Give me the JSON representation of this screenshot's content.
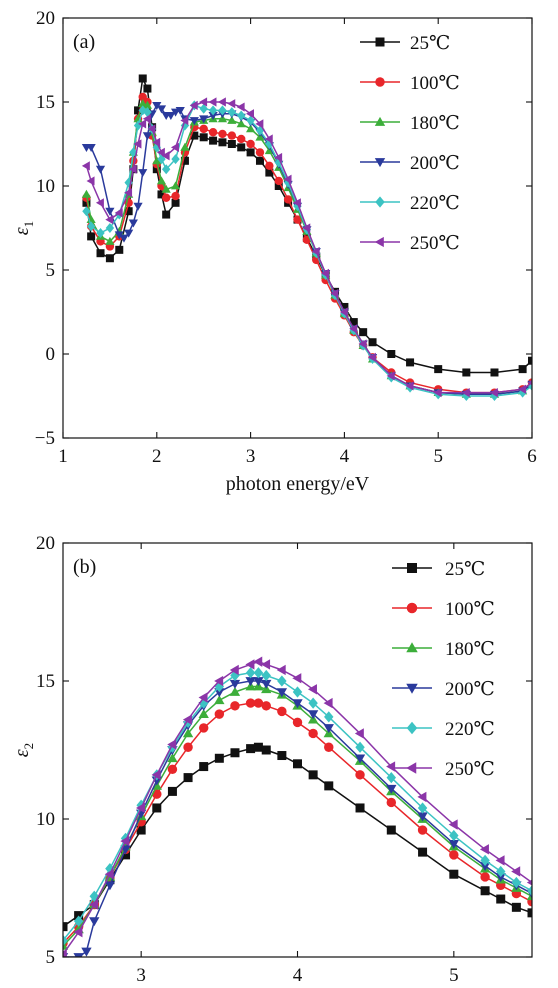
{
  "chart_data": [
    {
      "type": "line",
      "panel_label": "(a)",
      "xlabel": "photon energy/eV",
      "ylabel": "ε",
      "ylabel_sub": "1",
      "xlim": [
        1,
        6
      ],
      "ylim": [
        -5,
        20
      ],
      "xticks": [
        1,
        2,
        3,
        4,
        5,
        6
      ],
      "yticks": [
        -5,
        0,
        5,
        10,
        15,
        20
      ],
      "legend_position": "top-right",
      "series": [
        {
          "name": "25℃",
          "color": "#111111",
          "marker": "square",
          "x": [
            1.25,
            1.3,
            1.4,
            1.5,
            1.6,
            1.7,
            1.75,
            1.8,
            1.85,
            1.9,
            1.95,
            2.0,
            2.05,
            2.1,
            2.2,
            2.3,
            2.4,
            2.5,
            2.6,
            2.7,
            2.8,
            2.9,
            3.0,
            3.1,
            3.2,
            3.3,
            3.4,
            3.5,
            3.6,
            3.7,
            3.8,
            3.9,
            4.0,
            4.1,
            4.2,
            4.3,
            4.5,
            4.7,
            5.0,
            5.3,
            5.6,
            5.9,
            6.0
          ],
          "y": [
            9.0,
            7.0,
            6.0,
            5.7,
            6.2,
            8.5,
            11.0,
            14.5,
            16.4,
            15.8,
            13.5,
            11.0,
            9.5,
            8.3,
            9.0,
            11.5,
            13.0,
            12.9,
            12.7,
            12.6,
            12.5,
            12.3,
            12.0,
            11.5,
            10.8,
            10.0,
            9.0,
            8.0,
            6.9,
            5.8,
            4.7,
            3.7,
            2.8,
            1.9,
            1.3,
            0.7,
            0.0,
            -0.5,
            -0.9,
            -1.1,
            -1.1,
            -0.9,
            -0.4
          ]
        },
        {
          "name": "100℃",
          "color": "#e8262a",
          "marker": "circle",
          "x": [
            1.25,
            1.3,
            1.4,
            1.5,
            1.6,
            1.7,
            1.75,
            1.8,
            1.85,
            1.9,
            1.95,
            2.0,
            2.05,
            2.1,
            2.2,
            2.3,
            2.4,
            2.5,
            2.6,
            2.7,
            2.8,
            2.9,
            3.0,
            3.1,
            3.2,
            3.3,
            3.4,
            3.5,
            3.6,
            3.7,
            3.8,
            3.9,
            4.0,
            4.1,
            4.2,
            4.3,
            4.5,
            4.7,
            5.0,
            5.3,
            5.6,
            5.9,
            6.0
          ],
          "y": [
            9.3,
            7.6,
            6.7,
            6.4,
            7.0,
            9.0,
            11.5,
            14.0,
            15.3,
            15.0,
            13.0,
            11.3,
            10.0,
            9.3,
            9.4,
            12.0,
            13.5,
            13.4,
            13.2,
            13.1,
            13.0,
            12.8,
            12.5,
            12.0,
            11.2,
            10.3,
            9.2,
            8.0,
            6.8,
            5.6,
            4.4,
            3.3,
            2.3,
            1.3,
            0.5,
            -0.2,
            -1.1,
            -1.7,
            -2.1,
            -2.3,
            -2.3,
            -2.1,
            -1.7
          ]
        },
        {
          "name": "180℃",
          "color": "#3cae3a",
          "marker": "triangle-up",
          "x": [
            1.25,
            1.3,
            1.4,
            1.5,
            1.6,
            1.7,
            1.75,
            1.8,
            1.85,
            1.9,
            1.95,
            2.0,
            2.05,
            2.1,
            2.2,
            2.3,
            2.4,
            2.5,
            2.6,
            2.7,
            2.8,
            2.9,
            3.0,
            3.1,
            3.2,
            3.3,
            3.4,
            3.5,
            3.6,
            3.7,
            3.8,
            3.9,
            4.0,
            4.1,
            4.2,
            4.3,
            4.5,
            4.7,
            5.0,
            5.3,
            5.6,
            5.9,
            6.0
          ],
          "y": [
            9.5,
            8.0,
            7.0,
            6.7,
            7.3,
            9.5,
            12.0,
            14.0,
            14.9,
            14.8,
            13.2,
            11.5,
            10.3,
            9.8,
            10.0,
            12.3,
            13.8,
            13.9,
            14.0,
            14.0,
            13.9,
            13.7,
            13.4,
            12.9,
            12.1,
            11.1,
            9.9,
            8.6,
            7.3,
            6.0,
            4.7,
            3.5,
            2.4,
            1.4,
            0.5,
            -0.3,
            -1.3,
            -1.9,
            -2.3,
            -2.4,
            -2.4,
            -2.2,
            -1.8
          ]
        },
        {
          "name": "200℃",
          "color": "#2a3a9c",
          "marker": "triangle-down",
          "x": [
            1.25,
            1.3,
            1.4,
            1.5,
            1.6,
            1.65,
            1.7,
            1.75,
            1.8,
            1.85,
            1.9,
            1.95,
            2.0,
            2.05,
            2.1,
            2.15,
            2.2,
            2.25,
            2.3,
            2.4,
            2.5,
            2.6,
            2.7,
            2.8,
            2.9,
            3.0,
            3.1,
            3.2,
            3.3,
            3.4,
            3.5,
            3.6,
            3.7,
            3.8,
            3.9,
            4.0,
            4.1,
            4.2,
            4.3,
            4.5,
            4.7,
            5.0,
            5.3,
            5.6,
            5.9,
            6.0
          ],
          "y": [
            12.3,
            12.3,
            11.0,
            8.5,
            7.1,
            6.9,
            7.2,
            7.8,
            8.8,
            10.8,
            13.0,
            14.3,
            14.8,
            14.6,
            14.2,
            14.2,
            14.4,
            14.5,
            14.0,
            13.9,
            14.0,
            14.2,
            14.3,
            14.3,
            14.1,
            13.8,
            13.2,
            12.4,
            11.3,
            10.1,
            8.8,
            7.4,
            6.1,
            4.8,
            3.6,
            2.5,
            1.5,
            0.6,
            -0.2,
            -1.3,
            -1.9,
            -2.3,
            -2.4,
            -2.4,
            -2.2,
            -1.8
          ]
        },
        {
          "name": "220℃",
          "color": "#3cc3c3",
          "marker": "diamond",
          "x": [
            1.25,
            1.3,
            1.4,
            1.5,
            1.6,
            1.7,
            1.75,
            1.8,
            1.85,
            1.9,
            1.95,
            2.0,
            2.05,
            2.1,
            2.2,
            2.3,
            2.4,
            2.5,
            2.6,
            2.7,
            2.8,
            2.9,
            3.0,
            3.1,
            3.2,
            3.3,
            3.4,
            3.5,
            3.6,
            3.7,
            3.8,
            3.9,
            4.0,
            4.1,
            4.2,
            4.3,
            4.5,
            4.7,
            5.0,
            5.3,
            5.6,
            5.9,
            6.0
          ],
          "y": [
            8.5,
            7.6,
            7.2,
            7.5,
            8.3,
            10.2,
            12.0,
            13.6,
            14.5,
            14.4,
            13.4,
            12.3,
            11.6,
            11.0,
            11.6,
            13.6,
            14.8,
            14.6,
            14.5,
            14.5,
            14.4,
            14.2,
            13.9,
            13.3,
            12.5,
            11.4,
            10.2,
            8.8,
            7.4,
            6.0,
            4.7,
            3.5,
            2.4,
            1.4,
            0.5,
            -0.3,
            -1.4,
            -2.0,
            -2.4,
            -2.5,
            -2.5,
            -2.3,
            -1.9
          ]
        },
        {
          "name": "250℃",
          "color": "#8b35a8",
          "marker": "triangle-left",
          "x": [
            1.25,
            1.3,
            1.4,
            1.5,
            1.6,
            1.7,
            1.75,
            1.8,
            1.85,
            1.9,
            1.95,
            2.0,
            2.05,
            2.1,
            2.2,
            2.3,
            2.4,
            2.5,
            2.6,
            2.7,
            2.8,
            2.9,
            3.0,
            3.1,
            3.2,
            3.3,
            3.4,
            3.5,
            3.6,
            3.7,
            3.8,
            3.9,
            4.0,
            4.1,
            4.2,
            4.3,
            4.5,
            4.7,
            5.0,
            5.3,
            5.6,
            5.9,
            6.0
          ],
          "y": [
            11.2,
            10.3,
            9.0,
            8.0,
            8.4,
            9.6,
            11.0,
            12.5,
            13.7,
            14.0,
            13.4,
            12.6,
            12.0,
            11.8,
            12.3,
            13.9,
            14.8,
            15.0,
            15.0,
            15.0,
            14.9,
            14.7,
            14.3,
            13.7,
            12.8,
            11.7,
            10.4,
            9.0,
            7.5,
            6.1,
            4.8,
            3.6,
            2.5,
            1.5,
            0.6,
            -0.2,
            -1.3,
            -1.9,
            -2.3,
            -2.3,
            -2.3,
            -2.1,
            -1.7
          ]
        }
      ]
    },
    {
      "type": "line",
      "panel_label": "(b)",
      "xlabel": "",
      "ylabel": "ε",
      "ylabel_sub": "2",
      "xlim": [
        2.5,
        5.5
      ],
      "ylim": [
        5,
        20
      ],
      "xticks": [
        3,
        4,
        5
      ],
      "yticks": [
        5,
        10,
        15,
        20
      ],
      "legend_position": "top-right",
      "series": [
        {
          "name": "25℃",
          "color": "#111111",
          "marker": "square",
          "x": [
            2.5,
            2.6,
            2.7,
            2.8,
            2.9,
            3.0,
            3.1,
            3.2,
            3.3,
            3.4,
            3.5,
            3.6,
            3.7,
            3.75,
            3.8,
            3.9,
            4.0,
            4.1,
            4.2,
            4.4,
            4.6,
            4.8,
            5.0,
            5.2,
            5.3,
            5.4,
            5.5
          ],
          "y": [
            6.1,
            6.5,
            6.9,
            7.8,
            8.7,
            9.6,
            10.4,
            11.0,
            11.5,
            11.9,
            12.2,
            12.4,
            12.55,
            12.6,
            12.5,
            12.3,
            12.0,
            11.6,
            11.2,
            10.4,
            9.6,
            8.8,
            8.0,
            7.4,
            7.1,
            6.8,
            6.6
          ]
        },
        {
          "name": "100℃",
          "color": "#e8262a",
          "marker": "circle",
          "x": [
            2.5,
            2.6,
            2.7,
            2.8,
            2.9,
            3.0,
            3.1,
            3.2,
            3.3,
            3.4,
            3.5,
            3.6,
            3.7,
            3.75,
            3.8,
            3.9,
            4.0,
            4.1,
            4.2,
            4.4,
            4.6,
            4.8,
            5.0,
            5.2,
            5.3,
            5.4,
            5.5
          ],
          "y": [
            5.5,
            6.1,
            6.9,
            7.9,
            8.9,
            9.9,
            10.9,
            11.8,
            12.6,
            13.3,
            13.8,
            14.1,
            14.2,
            14.2,
            14.1,
            13.9,
            13.5,
            13.1,
            12.6,
            11.6,
            10.6,
            9.6,
            8.7,
            7.9,
            7.6,
            7.3,
            7.0
          ]
        },
        {
          "name": "180℃",
          "color": "#3cae3a",
          "marker": "triangle-up",
          "x": [
            2.5,
            2.6,
            2.7,
            2.8,
            2.9,
            3.0,
            3.1,
            3.2,
            3.3,
            3.4,
            3.5,
            3.6,
            3.7,
            3.75,
            3.8,
            3.9,
            4.0,
            4.1,
            4.2,
            4.4,
            4.6,
            4.8,
            5.0,
            5.2,
            5.3,
            5.4,
            5.5
          ],
          "y": [
            5.4,
            6.0,
            6.9,
            7.9,
            9.0,
            10.1,
            11.2,
            12.2,
            13.1,
            13.8,
            14.3,
            14.6,
            14.8,
            14.8,
            14.7,
            14.5,
            14.1,
            13.6,
            13.1,
            12.1,
            11.0,
            10.0,
            9.0,
            8.2,
            7.8,
            7.5,
            7.2
          ]
        },
        {
          "name": "200℃",
          "color": "#2a3a9c",
          "marker": "triangle-down",
          "x": [
            2.5,
            2.6,
            2.65,
            2.7,
            2.8,
            2.9,
            3.0,
            3.1,
            3.2,
            3.3,
            3.4,
            3.5,
            3.6,
            3.7,
            3.75,
            3.8,
            3.9,
            4.0,
            4.1,
            4.2,
            4.4,
            4.6,
            4.8,
            5.0,
            5.2,
            5.3,
            5.4,
            5.5
          ],
          "y": [
            5.0,
            5.0,
            5.2,
            6.3,
            7.6,
            8.9,
            10.2,
            11.4,
            12.5,
            13.4,
            14.1,
            14.6,
            14.9,
            15.0,
            15.0,
            14.9,
            14.6,
            14.2,
            13.8,
            13.3,
            12.2,
            11.1,
            10.1,
            9.1,
            8.3,
            7.9,
            7.6,
            7.3
          ]
        },
        {
          "name": "220℃",
          "color": "#3cc3c3",
          "marker": "diamond",
          "x": [
            2.5,
            2.6,
            2.7,
            2.8,
            2.9,
            3.0,
            3.1,
            3.2,
            3.3,
            3.4,
            3.5,
            3.6,
            3.7,
            3.75,
            3.8,
            3.9,
            4.0,
            4.1,
            4.2,
            4.4,
            4.6,
            4.8,
            5.0,
            5.2,
            5.3,
            5.4,
            5.5
          ],
          "y": [
            5.6,
            6.3,
            7.2,
            8.2,
            9.3,
            10.5,
            11.6,
            12.6,
            13.5,
            14.2,
            14.8,
            15.2,
            15.3,
            15.3,
            15.2,
            15.0,
            14.6,
            14.2,
            13.7,
            12.6,
            11.5,
            10.4,
            9.4,
            8.5,
            8.1,
            7.7,
            7.4
          ]
        },
        {
          "name": "250℃",
          "color": "#8b35a8",
          "marker": "triangle-left",
          "x": [
            2.5,
            2.6,
            2.7,
            2.8,
            2.9,
            3.0,
            3.1,
            3.2,
            3.3,
            3.4,
            3.5,
            3.6,
            3.7,
            3.75,
            3.8,
            3.9,
            4.0,
            4.1,
            4.2,
            4.4,
            4.6,
            4.8,
            5.0,
            5.2,
            5.3,
            5.4,
            5.5
          ],
          "y": [
            5.1,
            5.9,
            6.9,
            8.0,
            9.2,
            10.4,
            11.6,
            12.7,
            13.6,
            14.4,
            15.0,
            15.4,
            15.6,
            15.7,
            15.6,
            15.4,
            15.1,
            14.7,
            14.2,
            13.1,
            11.9,
            10.8,
            9.8,
            8.9,
            8.5,
            8.1,
            7.7
          ]
        }
      ]
    }
  ]
}
